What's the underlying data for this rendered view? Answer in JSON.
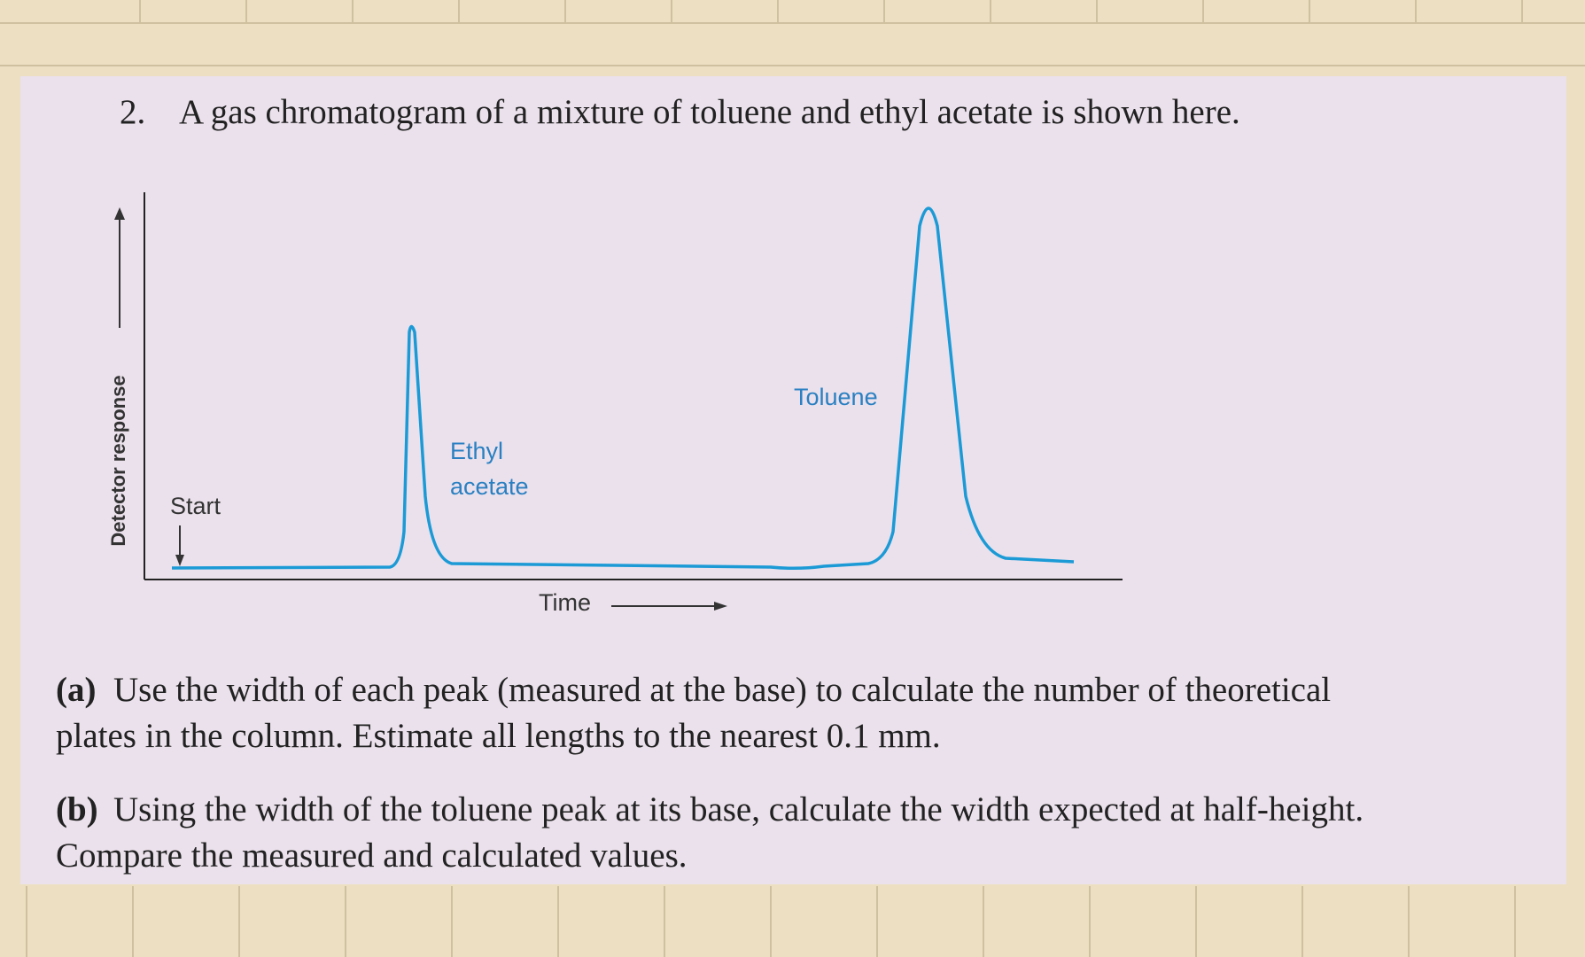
{
  "question": {
    "number": "2.",
    "prompt": "A gas chromatogram of a mixture of toluene and ethyl acetate is shown here."
  },
  "figure": {
    "y_axis_label": "Detector response",
    "x_axis_label": "Time",
    "start_label": "Start",
    "peaks": [
      {
        "label_lines": [
          "Ethyl",
          "acetate"
        ]
      },
      {
        "label_lines": [
          "Toluene"
        ]
      }
    ]
  },
  "parts": [
    {
      "label": "(a)",
      "lines": [
        "Use the width of each peak (measured at the base) to calculate the number of theoretical",
        "plates in the column. Estimate all lengths to the nearest 0.1 mm."
      ]
    },
    {
      "label": "(b)",
      "lines": [
        "Using the width of the toluene peak at its base, calculate the width expected at half-height.",
        "Compare the measured and calculated values."
      ]
    }
  ]
}
